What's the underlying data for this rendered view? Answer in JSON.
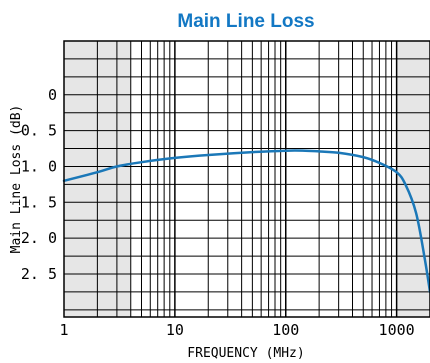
{
  "chart_data": {
    "type": "line",
    "title": "Main Line Loss",
    "xlabel": "FREQUENCY (MHz)",
    "ylabel": "Main Line Loss (dB)",
    "x_scale": "log",
    "xlim": [
      1,
      2000
    ],
    "ylim": [
      -0.75,
      3.1
    ],
    "y_inverted": true,
    "grid": true,
    "shaded_x_ranges": [
      [
        1,
        4
      ],
      [
        1000,
        2000
      ]
    ],
    "x_ticks": [
      {
        "value": 1,
        "label": "1"
      },
      {
        "value": 10,
        "label": "10"
      },
      {
        "value": 100,
        "label": "100"
      },
      {
        "value": 1000,
        "label": "1000"
      }
    ],
    "y_ticks": [
      {
        "value": 0,
        "label": "0"
      },
      {
        "value": 0.5,
        "label": "0. 5"
      },
      {
        "value": 1.0,
        "label": "1. 0"
      },
      {
        "value": 1.5,
        "label": "1. 5"
      },
      {
        "value": 2.0,
        "label": "2. 0"
      },
      {
        "value": 2.5,
        "label": "2. 5"
      }
    ],
    "series": [
      {
        "color": "#1b78b8",
        "points": [
          [
            1,
            1.2
          ],
          [
            2,
            1.08
          ],
          [
            3,
            1.0
          ],
          [
            5,
            0.94
          ],
          [
            10,
            0.88
          ],
          [
            20,
            0.84
          ],
          [
            50,
            0.8
          ],
          [
            100,
            0.78
          ],
          [
            150,
            0.78
          ],
          [
            200,
            0.79
          ],
          [
            300,
            0.81
          ],
          [
            500,
            0.87
          ],
          [
            700,
            0.95
          ],
          [
            1000,
            1.08
          ],
          [
            1200,
            1.25
          ],
          [
            1500,
            1.65
          ],
          [
            1800,
            2.3
          ],
          [
            2000,
            2.75
          ]
        ]
      }
    ],
    "colors": {
      "title": "#1378c4",
      "curve": "#1b78b8",
      "shade": "#e6e6e6",
      "grid": "#000000"
    }
  }
}
